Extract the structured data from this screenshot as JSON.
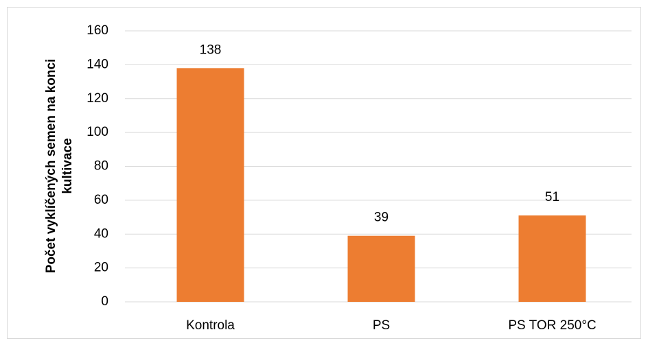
{
  "chart_data": {
    "type": "bar",
    "ylabel": [
      "Počet vyklíčených semen na konci",
      "kultivace"
    ],
    "categories": [
      "Kontrola",
      "PS",
      "PS TOR 250°C"
    ],
    "values": [
      138,
      39,
      51
    ],
    "color": "#ed7d31",
    "ylim": [
      0,
      160
    ],
    "yticks": [
      0,
      20,
      40,
      60,
      80,
      100,
      120,
      140,
      160
    ],
    "grid": true,
    "data_labels": true
  }
}
